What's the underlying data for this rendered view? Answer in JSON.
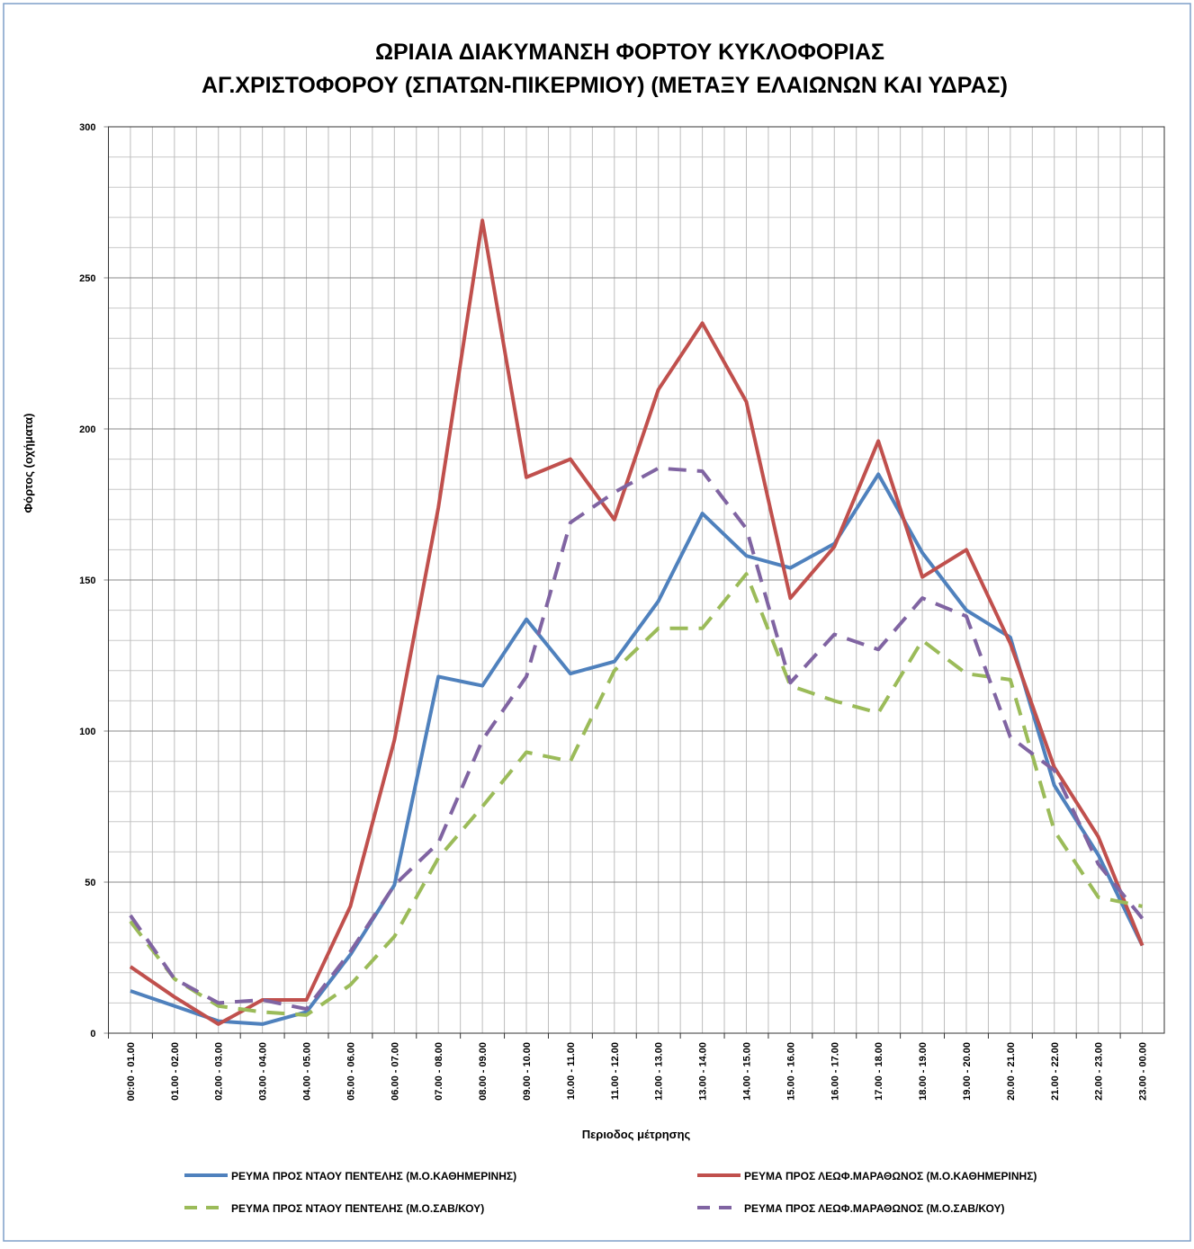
{
  "chart_data": {
    "type": "line",
    "title": [
      "ΩΡΙΑΙΑ ΔΙΑΚΥΜΑΝΣΗ ΦΟΡΤΟΥ ΚΥΚΛΟΦΟΡΙΑΣ",
      "ΑΓ.ΧΡΙΣΤΟΦΟΡΟΥ (ΣΠΑΤΩΝ-ΠΙΚΕΡΜΙΟΥ) (ΜΕΤΑΞΥ ΕΛΑΙΩΝΩΝ ΚΑΙ ΥΔΡΑΣ)"
    ],
    "x_label": "Περιοδος μέτρησης",
    "y_label": "Φόρτος (οχήματα)",
    "categories": [
      "00:00 - 01.00",
      "01.00 - 02.00",
      "02.00 - 03.00",
      "03.00 - 04.00",
      "04.00 - 05.00",
      "05.00 - 06.00",
      "06.00 - 07.00",
      "07.00 - 08.00",
      "08.00 - 09.00",
      "09.00 - 10.00",
      "10.00 - 11.00",
      "11.00 - 12.00",
      "12.00 - 13.00",
      "13.00 - 14.00",
      "14.00 - 15.00",
      "15.00 - 16.00",
      "16.00 - 17.00",
      "17.00 - 18.00",
      "18.00 - 19.00",
      "19.00 - 20.00",
      "20.00 - 21.00",
      "21.00 - 22.00",
      "22.00 - 23.00",
      "23.00 - 00.00"
    ],
    "series": [
      {
        "name": "ΡΕΥΜΑ ΠΡΟΣ ΝΤΑΟΥ ΠΕΝΤΕΛΗΣ (Μ.Ο.ΚΑΘΗΜΕΡΙΝΗΣ)",
        "color": "#4f81bd",
        "dashed": false,
        "values": [
          14,
          9,
          4,
          3,
          7,
          26,
          49,
          118,
          115,
          137,
          119,
          123,
          143,
          172,
          158,
          154,
          162,
          185,
          159,
          140,
          131,
          82,
          59,
          29
        ]
      },
      {
        "name": "ΡΕΥΜΑ ΠΡΟΣ ΛΕΩΦ.ΜΑΡΑΘΩΝΟΣ (Μ.Ο.ΚΑΘΗΜΕΡΙΝΗΣ)",
        "color": "#c0504d",
        "dashed": false,
        "values": [
          22,
          12,
          3,
          11,
          11,
          42,
          97,
          174,
          269,
          184,
          190,
          170,
          213,
          235,
          209,
          144,
          161,
          196,
          151,
          160,
          129,
          88,
          65,
          29
        ]
      },
      {
        "name": "ΡΕΥΜΑ ΠΡΟΣ ΝΤΑΟΥ ΠΕΝΤΕΛΗΣ (Μ.Ο.ΣΑΒ/ΚΟΥ)",
        "color": "#9bbb59",
        "dashed": true,
        "values": [
          37,
          18,
          9,
          7,
          6,
          16,
          32,
          58,
          75,
          93,
          90,
          120,
          134,
          134,
          152,
          115,
          110,
          106,
          130,
          119,
          117,
          67,
          45,
          42
        ]
      },
      {
        "name": "ΡΕΥΜΑ ΠΡΟΣ ΛΕΩΦ.ΜΑΡΑΘΩΝΟΣ (Μ.Ο.ΣΑΒ/ΚΟΥ)",
        "color": "#8064a2",
        "dashed": true,
        "values": [
          39,
          18,
          10,
          11,
          8,
          27,
          49,
          63,
          97,
          118,
          169,
          179,
          187,
          186,
          167,
          116,
          132,
          127,
          144,
          138,
          98,
          87,
          56,
          38
        ]
      }
    ],
    "ylim": [
      0,
      300
    ],
    "yticks": [
      0,
      50,
      100,
      150,
      200,
      250,
      300
    ],
    "grid": true,
    "minor_grid_divisions": 5,
    "legend": "bottom"
  }
}
